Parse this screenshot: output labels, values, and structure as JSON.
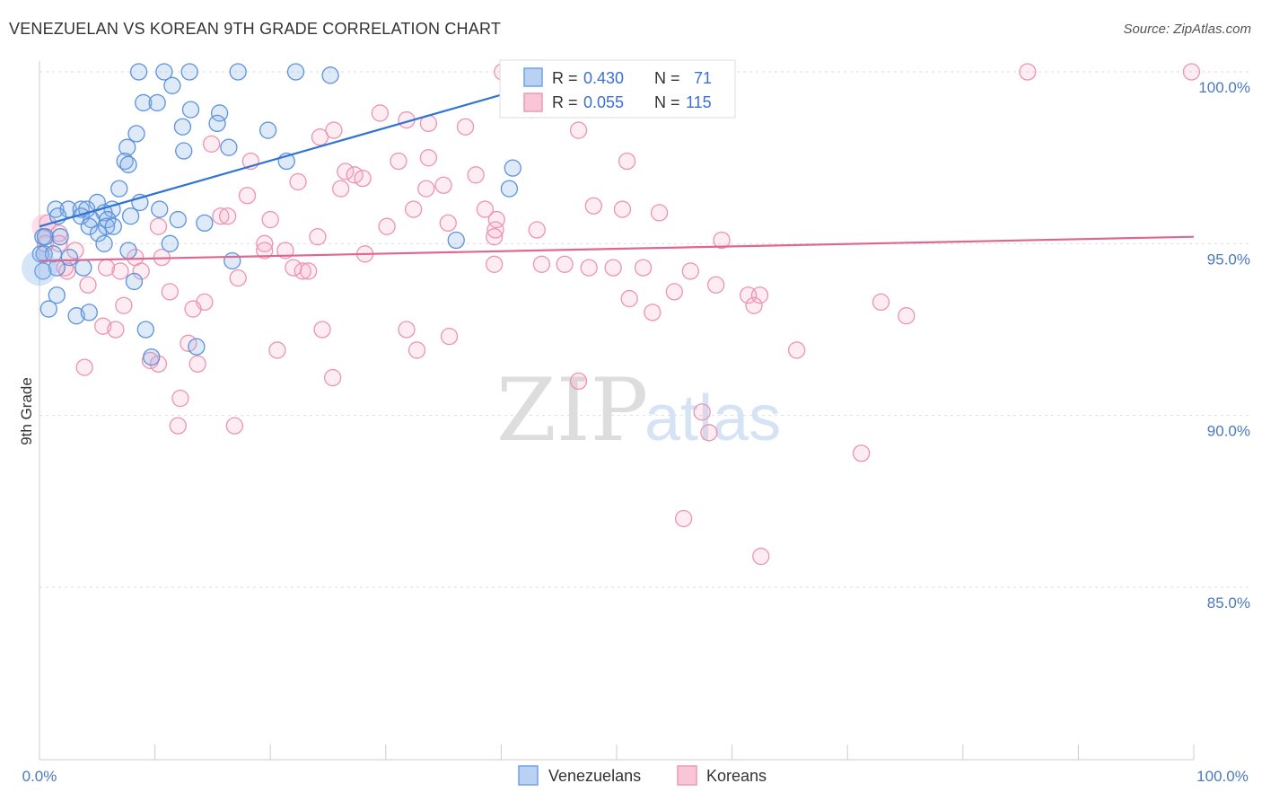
{
  "title": "VENEZUELAN VS KOREAN 9TH GRADE CORRELATION CHART",
  "source": "Source: ZipAtlas.com",
  "watermark": {
    "zip": "ZIP",
    "atlas": "atlas"
  },
  "colors": {
    "blue": "#6fa1e8",
    "pink": "#ee99b5",
    "blue_line": "#2f73d4",
    "pink_line": "#e0678f",
    "label_blue": "#4a78c2"
  },
  "chart_data": {
    "type": "scatter",
    "title": "VENEZUELAN VS KOREAN 9TH GRADE CORRELATION CHART",
    "xlabel": "",
    "ylabel": "9th Grade",
    "xlim": [
      0,
      100
    ],
    "ylim": [
      80.0,
      100.8
    ],
    "x_tick_labels": [
      "0.0%",
      "100.0%"
    ],
    "y_ticks": [
      100,
      95,
      90,
      85
    ],
    "y_tick_labels": [
      "100.0%",
      "95.0%",
      "90.0%",
      "85.0%"
    ],
    "legend_top": [
      {
        "series": "Venezuelans",
        "r_label": "R =",
        "r": "0.430",
        "n_label": "N =",
        "n": "71"
      },
      {
        "series": "Koreans",
        "r_label": "R =",
        "r": "0.055",
        "n_label": "N =",
        "n": "115"
      }
    ],
    "legend_bottom": [
      "Venezuelans",
      "Koreans"
    ],
    "series": [
      {
        "name": "Venezuelans",
        "trend": {
          "x": [
            0,
            47
          ],
          "y": [
            95.5,
            100.0
          ]
        },
        "points": [
          [
            8.6,
            100
          ],
          [
            10.8,
            100
          ],
          [
            13.0,
            100
          ],
          [
            17.2,
            100
          ],
          [
            22.2,
            100
          ],
          [
            25.2,
            99.9
          ],
          [
            11.5,
            99.6
          ],
          [
            9.0,
            99.1
          ],
          [
            10.2,
            99.1
          ],
          [
            13.1,
            98.9
          ],
          [
            15.6,
            98.8
          ],
          [
            15.4,
            98.5
          ],
          [
            12.4,
            98.4
          ],
          [
            19.8,
            98.3
          ],
          [
            8.4,
            98.2
          ],
          [
            7.6,
            97.8
          ],
          [
            12.5,
            97.7
          ],
          [
            16.4,
            97.8
          ],
          [
            7.4,
            97.4
          ],
          [
            7.7,
            97.3
          ],
          [
            21.4,
            97.4
          ],
          [
            41.0,
            97.2
          ],
          [
            40.7,
            96.6
          ],
          [
            6.9,
            96.6
          ],
          [
            8.7,
            96.2
          ],
          [
            5.0,
            96.2
          ],
          [
            1.4,
            96.0
          ],
          [
            2.5,
            96.0
          ],
          [
            3.6,
            96.0
          ],
          [
            4.1,
            96.0
          ],
          [
            6.3,
            96.0
          ],
          [
            10.4,
            96.0
          ],
          [
            1.6,
            95.8
          ],
          [
            3.6,
            95.8
          ],
          [
            5.6,
            95.9
          ],
          [
            7.9,
            95.8
          ],
          [
            4.5,
            95.7
          ],
          [
            5.9,
            95.7
          ],
          [
            12.0,
            95.7
          ],
          [
            14.3,
            95.6
          ],
          [
            4.3,
            95.5
          ],
          [
            5.8,
            95.5
          ],
          [
            6.4,
            95.5
          ],
          [
            5.1,
            95.3
          ],
          [
            0.3,
            95.2
          ],
          [
            0.5,
            95.2
          ],
          [
            1.8,
            95.2
          ],
          [
            5.6,
            95.0
          ],
          [
            11.3,
            95.0
          ],
          [
            36.1,
            95.1
          ],
          [
            0.1,
            94.7
          ],
          [
            0.4,
            94.7
          ],
          [
            1.2,
            94.7
          ],
          [
            2.6,
            94.6
          ],
          [
            7.7,
            94.8
          ],
          [
            1.5,
            94.3
          ],
          [
            3.8,
            94.3
          ],
          [
            16.7,
            94.5
          ],
          [
            0.3,
            94.2
          ],
          [
            8.2,
            93.9
          ],
          [
            1.5,
            93.5
          ],
          [
            0.8,
            93.1
          ],
          [
            3.2,
            92.9
          ],
          [
            4.3,
            93.0
          ],
          [
            9.2,
            92.5
          ],
          [
            13.6,
            92.0
          ],
          [
            9.7,
            91.7
          ]
        ]
      },
      {
        "name": "Koreans",
        "trend": {
          "x": [
            0,
            100
          ],
          "y": [
            94.5,
            95.2
          ]
        },
        "points": [
          [
            40.1,
            100
          ],
          [
            47.1,
            100
          ],
          [
            85.6,
            100
          ],
          [
            99.8,
            100
          ],
          [
            42.6,
            98.9
          ],
          [
            29.5,
            98.8
          ],
          [
            31.8,
            98.6
          ],
          [
            33.7,
            98.5
          ],
          [
            36.9,
            98.4
          ],
          [
            25.5,
            98.3
          ],
          [
            24.3,
            98.1
          ],
          [
            46.7,
            98.3
          ],
          [
            14.9,
            97.9
          ],
          [
            33.7,
            97.5
          ],
          [
            31.1,
            97.4
          ],
          [
            50.9,
            97.4
          ],
          [
            18.3,
            97.4
          ],
          [
            26.5,
            97.1
          ],
          [
            27.3,
            97.0
          ],
          [
            37.8,
            97.0
          ],
          [
            28.0,
            96.9
          ],
          [
            22.4,
            96.8
          ],
          [
            26.1,
            96.6
          ],
          [
            35.0,
            96.7
          ],
          [
            33.5,
            96.6
          ],
          [
            18.0,
            96.4
          ],
          [
            38.6,
            96.0
          ],
          [
            32.4,
            96.0
          ],
          [
            48.0,
            96.1
          ],
          [
            50.5,
            96.0
          ],
          [
            53.7,
            95.9
          ],
          [
            15.7,
            95.8
          ],
          [
            16.3,
            95.8
          ],
          [
            20.0,
            95.7
          ],
          [
            35.4,
            95.6
          ],
          [
            39.6,
            95.7
          ],
          [
            10.3,
            95.5
          ],
          [
            30.1,
            95.5
          ],
          [
            43.1,
            95.4
          ],
          [
            39.5,
            95.4
          ],
          [
            24.1,
            95.2
          ],
          [
            39.4,
            95.2
          ],
          [
            59.1,
            95.1
          ],
          [
            0.7,
            95.6
          ],
          [
            1.7,
            95.3
          ],
          [
            0.5,
            95.0
          ],
          [
            1.7,
            95.0
          ],
          [
            3.1,
            94.8
          ],
          [
            19.5,
            94.8
          ],
          [
            19.5,
            95.0
          ],
          [
            21.3,
            94.8
          ],
          [
            28.2,
            94.7
          ],
          [
            8.3,
            94.6
          ],
          [
            10.6,
            94.6
          ],
          [
            22.8,
            94.2
          ],
          [
            22.0,
            94.3
          ],
          [
            23.3,
            94.2
          ],
          [
            2.2,
            94.3
          ],
          [
            2.4,
            94.2
          ],
          [
            5.8,
            94.3
          ],
          [
            7.0,
            94.2
          ],
          [
            8.8,
            94.2
          ],
          [
            39.4,
            94.4
          ],
          [
            43.5,
            94.4
          ],
          [
            45.5,
            94.4
          ],
          [
            47.6,
            94.3
          ],
          [
            49.7,
            94.3
          ],
          [
            52.3,
            94.3
          ],
          [
            56.4,
            94.2
          ],
          [
            17.2,
            94.0
          ],
          [
            58.6,
            93.8
          ],
          [
            4.2,
            93.8
          ],
          [
            11.3,
            93.6
          ],
          [
            55.0,
            93.6
          ],
          [
            61.4,
            93.5
          ],
          [
            62.4,
            93.5
          ],
          [
            51.1,
            93.4
          ],
          [
            14.3,
            93.3
          ],
          [
            72.9,
            93.3
          ],
          [
            7.3,
            93.2
          ],
          [
            13.3,
            93.1
          ],
          [
            61.9,
            93.2
          ],
          [
            53.1,
            93.0
          ],
          [
            75.1,
            92.9
          ],
          [
            5.5,
            92.6
          ],
          [
            6.6,
            92.5
          ],
          [
            24.5,
            92.5
          ],
          [
            31.8,
            92.5
          ],
          [
            35.5,
            92.3
          ],
          [
            12.9,
            92.1
          ],
          [
            20.6,
            91.9
          ],
          [
            32.7,
            91.9
          ],
          [
            65.6,
            91.9
          ],
          [
            9.6,
            91.6
          ],
          [
            10.3,
            91.5
          ],
          [
            13.7,
            91.5
          ],
          [
            3.9,
            91.4
          ],
          [
            25.4,
            91.1
          ],
          [
            46.7,
            91.0
          ],
          [
            12.2,
            90.5
          ],
          [
            57.4,
            90.1
          ],
          [
            12.0,
            89.7
          ],
          [
            16.9,
            89.7
          ],
          [
            58.0,
            89.5
          ],
          [
            71.2,
            88.9
          ],
          [
            55.8,
            87.0
          ],
          [
            62.5,
            85.9
          ]
        ]
      }
    ]
  }
}
